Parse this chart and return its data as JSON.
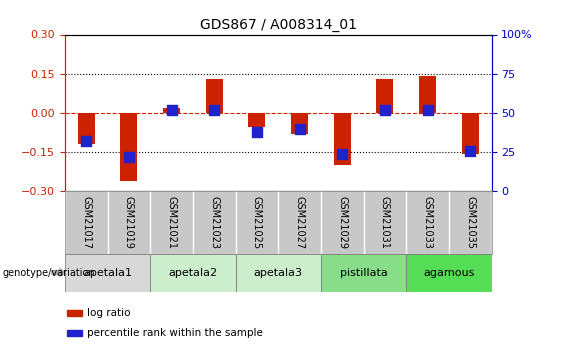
{
  "title": "GDS867 / A008314_01",
  "samples": [
    "GSM21017",
    "GSM21019",
    "GSM21021",
    "GSM21023",
    "GSM21025",
    "GSM21027",
    "GSM21029",
    "GSM21031",
    "GSM21033",
    "GSM21035"
  ],
  "log_ratio": [
    -0.12,
    -0.26,
    0.02,
    0.13,
    -0.055,
    -0.08,
    -0.2,
    0.13,
    0.14,
    -0.155
  ],
  "percentile_rank_pct": [
    32,
    22,
    52,
    52,
    38,
    40,
    24,
    52,
    52,
    26
  ],
  "ylim": [
    -0.3,
    0.3
  ],
  "yticks_left": [
    -0.3,
    -0.15,
    0.0,
    0.15,
    0.3
  ],
  "yticks_right": [
    0,
    25,
    50,
    75,
    100
  ],
  "bar_color": "#cc2200",
  "dot_color": "#2222cc",
  "hline_color": "#cc2200",
  "grid_color": "#000000",
  "genotype_groups": [
    {
      "label": "apetala1",
      "indices": [
        0,
        1
      ],
      "color": "#d8d8d8"
    },
    {
      "label": "apetala2",
      "indices": [
        2,
        3
      ],
      "color": "#cceecc"
    },
    {
      "label": "apetala3",
      "indices": [
        4,
        5
      ],
      "color": "#cceecc"
    },
    {
      "label": "pistillata",
      "indices": [
        6,
        7
      ],
      "color": "#88dd88"
    },
    {
      "label": "agamous",
      "indices": [
        8,
        9
      ],
      "color": "#55dd55"
    }
  ],
  "legend_log_ratio_color": "#cc2200",
  "legend_percentile_color": "#2222cc",
  "ylabel_left_color": "#cc2200",
  "ylabel_right_color": "#0000cc",
  "bar_width": 0.4,
  "dot_size": 55,
  "sample_label_bg": "#c8c8c8"
}
